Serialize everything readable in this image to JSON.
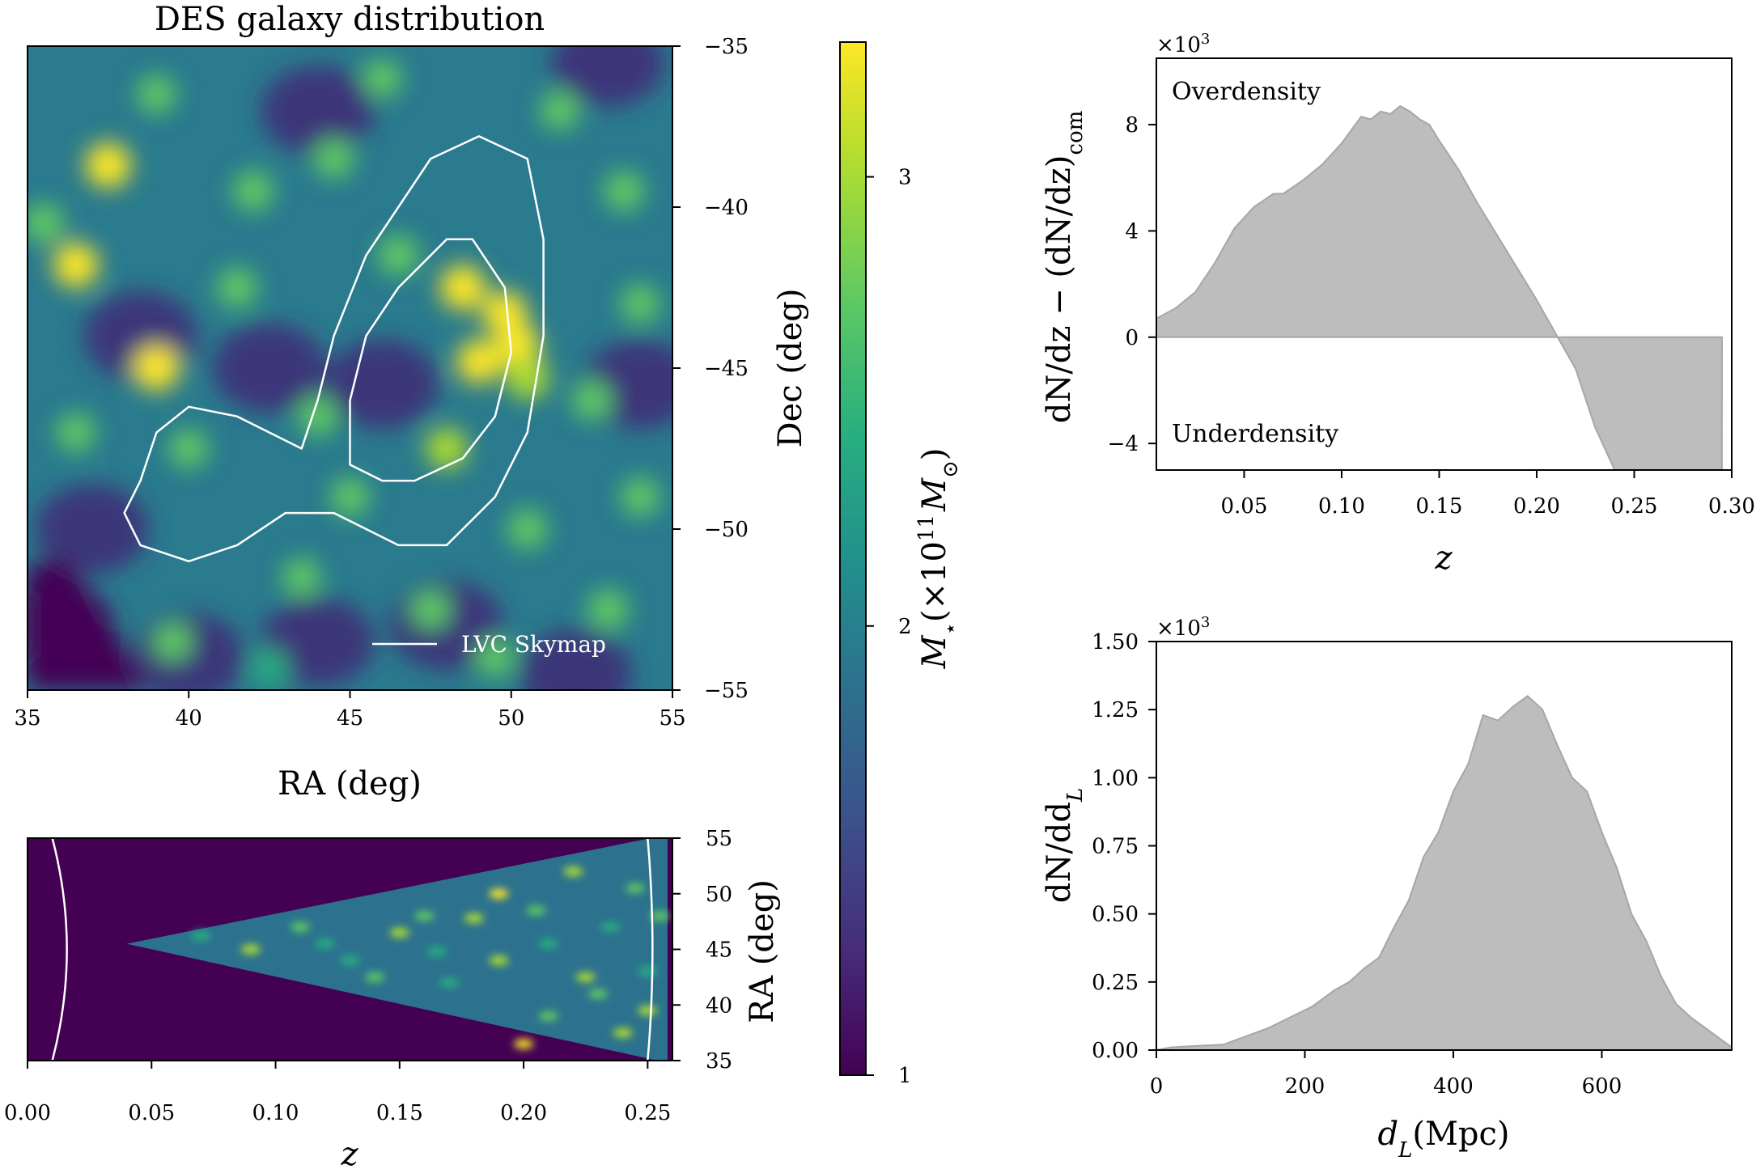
{
  "colors": {
    "fill": "#bdbdbd",
    "edge": "#a6a6a6",
    "contour": "#ffffff",
    "cmap_low": "#440154",
    "cmap_high": "#fde725"
  },
  "chart_data": [
    {
      "id": "sky",
      "type": "heatmap",
      "title": "DES galaxy distribution",
      "xlabel": "RA (deg)",
      "ylabel": "Dec (deg)",
      "xlim": [
        35,
        55
      ],
      "ylim": [
        -55,
        -35
      ],
      "xticks": [
        "35",
        "40",
        "45",
        "50",
        "55"
      ],
      "yticks": [
        "−35",
        "−40",
        "−45",
        "−50",
        "−55"
      ],
      "legend": "LVC Skymap",
      "hotspots": [
        {
          "ra": 37.5,
          "dec": -38.7,
          "v": 1.0
        },
        {
          "ra": 36.5,
          "dec": -41.8,
          "v": 0.95
        },
        {
          "ra": 39.0,
          "dec": -45.0,
          "v": 1.0
        },
        {
          "ra": 48.5,
          "dec": -42.5,
          "v": 1.0
        },
        {
          "ra": 49.8,
          "dec": -43.3,
          "v": 0.95
        },
        {
          "ra": 50.2,
          "dec": -44.3,
          "v": 0.95
        },
        {
          "ra": 49.0,
          "dec": -44.8,
          "v": 0.9
        },
        {
          "ra": 50.5,
          "dec": -45.3,
          "v": 0.85
        },
        {
          "ra": 42.0,
          "dec": -39.5,
          "v": 0.6
        },
        {
          "ra": 44.5,
          "dec": -38.5,
          "v": 0.55
        },
        {
          "ra": 53.5,
          "dec": -39.5,
          "v": 0.6
        },
        {
          "ra": 46.5,
          "dec": -41.5,
          "v": 0.65
        },
        {
          "ra": 41.5,
          "dec": -42.5,
          "v": 0.6
        },
        {
          "ra": 48.0,
          "dec": -47.5,
          "v": 0.7
        },
        {
          "ra": 44.0,
          "dec": -46.5,
          "v": 0.55
        },
        {
          "ra": 40.0,
          "dec": -47.5,
          "v": 0.5
        },
        {
          "ra": 52.5,
          "dec": -46.0,
          "v": 0.55
        },
        {
          "ra": 45.0,
          "dec": -49.0,
          "v": 0.5
        },
        {
          "ra": 50.5,
          "dec": -50.0,
          "v": 0.55
        },
        {
          "ra": 47.5,
          "dec": -52.5,
          "v": 0.5
        },
        {
          "ra": 53.0,
          "dec": -52.5,
          "v": 0.6
        },
        {
          "ra": 36.5,
          "dec": -47.0,
          "v": 0.5
        },
        {
          "ra": 43.5,
          "dec": -51.5,
          "v": 0.45
        },
        {
          "ra": 35.5,
          "dec": -40.5,
          "v": 0.6
        },
        {
          "ra": 51.5,
          "dec": -37.0,
          "v": 0.5
        },
        {
          "ra": 39.0,
          "dec": -36.5,
          "v": 0.5
        },
        {
          "ra": 46.0,
          "dec": -36.0,
          "v": 0.45
        },
        {
          "ra": 54.0,
          "dec": -43.0,
          "v": 0.5
        },
        {
          "ra": 39.5,
          "dec": -53.5,
          "v": 0.45
        },
        {
          "ra": 49.5,
          "dec": -54.0,
          "v": 0.45
        },
        {
          "ra": 42.5,
          "dec": -54.3,
          "v": 0.4
        },
        {
          "ra": 54.0,
          "dec": -49.0,
          "v": 0.5
        }
      ],
      "contour_outer": [
        [
          43.5,
          -47.5
        ],
        [
          41.5,
          -46.5
        ],
        [
          40.0,
          -46.2
        ],
        [
          39.0,
          -47.0
        ],
        [
          38.5,
          -48.5
        ],
        [
          38.0,
          -49.5
        ],
        [
          38.5,
          -50.5
        ],
        [
          40.0,
          -51.0
        ],
        [
          41.5,
          -50.5
        ],
        [
          43.0,
          -49.5
        ],
        [
          44.5,
          -49.5
        ],
        [
          46.5,
          -50.5
        ],
        [
          48.0,
          -50.5
        ],
        [
          49.5,
          -49.0
        ],
        [
          50.5,
          -47.0
        ],
        [
          51.0,
          -44.0
        ],
        [
          51.0,
          -41.0
        ],
        [
          50.5,
          -38.5
        ],
        [
          49.0,
          -37.8
        ],
        [
          47.5,
          -38.5
        ],
        [
          46.5,
          -40.0
        ],
        [
          45.5,
          -41.5
        ],
        [
          44.5,
          -44.0
        ],
        [
          44.0,
          -46.0
        ],
        [
          43.5,
          -47.5
        ]
      ],
      "contour_inner": [
        [
          46.0,
          -48.5
        ],
        [
          45.0,
          -48.0
        ],
        [
          45.0,
          -46.0
        ],
        [
          45.5,
          -44.0
        ],
        [
          46.5,
          -42.5
        ],
        [
          48.0,
          -41.0
        ],
        [
          48.8,
          -41.0
        ],
        [
          49.8,
          -42.5
        ],
        [
          50.0,
          -44.5
        ],
        [
          49.5,
          -46.5
        ],
        [
          48.5,
          -47.8
        ],
        [
          47.0,
          -48.5
        ],
        [
          46.0,
          -48.5
        ]
      ]
    },
    {
      "id": "colorbar",
      "type": "heatmap",
      "label_prefix": "M",
      "label_sub": "⋆",
      "label_mid": "(×10",
      "label_sup": "11",
      "label_unit": "M",
      "label_unit_sub": "⊙",
      "label_close": ")",
      "vlim": [
        1,
        3.3
      ],
      "ticks": [
        "1",
        "2",
        "3"
      ],
      "tick_values": [
        1,
        2,
        3
      ]
    },
    {
      "id": "wedge",
      "type": "heatmap",
      "xlabel": "z",
      "ylabel": "RA (deg)",
      "xlim": [
        0.0,
        0.26
      ],
      "ylim": [
        35,
        55
      ],
      "xticks": [
        "0.00",
        "0.05",
        "0.10",
        "0.15",
        "0.20",
        "0.25"
      ],
      "xtick_values": [
        0.0,
        0.05,
        0.1,
        0.15,
        0.2,
        0.25
      ],
      "yticks": [
        "55",
        "50",
        "45",
        "40",
        "35"
      ],
      "ytick_values": [
        55,
        50,
        45,
        40,
        35
      ],
      "apex_z": 0.04,
      "arc_z": [
        0.01,
        0.25
      ]
    },
    {
      "id": "dndz",
      "type": "area",
      "ylabel": "dN/dz − (dN/dz)",
      "ylabel_sub": "com",
      "xlabel": "z",
      "multiplier": "×10",
      "multiplier_sup": "3",
      "annot_top": "Overdensity",
      "annot_bottom": "Underdensity",
      "xlim": [
        0.005,
        0.3
      ],
      "ylim": [
        -5,
        10.5
      ],
      "xticks": [
        "0.05",
        "0.10",
        "0.15",
        "0.20",
        "0.25",
        "0.30"
      ],
      "xtick_values": [
        0.05,
        0.1,
        0.15,
        0.2,
        0.25,
        0.3
      ],
      "yticks": [
        "8",
        "4",
        "0",
        "−4"
      ],
      "ytick_values": [
        8,
        4,
        0,
        -4
      ],
      "x": [
        0.005,
        0.015,
        0.025,
        0.035,
        0.045,
        0.055,
        0.065,
        0.07,
        0.08,
        0.09,
        0.1,
        0.105,
        0.11,
        0.115,
        0.12,
        0.125,
        0.13,
        0.135,
        0.14,
        0.145,
        0.15,
        0.16,
        0.17,
        0.18,
        0.19,
        0.2,
        0.21,
        0.22,
        0.23,
        0.24,
        0.25,
        0.26,
        0.27,
        0.28,
        0.295
      ],
      "y": [
        0.7,
        1.1,
        1.7,
        2.8,
        4.1,
        4.9,
        5.4,
        5.4,
        5.9,
        6.5,
        7.3,
        7.8,
        8.3,
        8.2,
        8.5,
        8.4,
        8.7,
        8.5,
        8.2,
        8.0,
        7.4,
        6.3,
        5.0,
        3.8,
        2.6,
        1.4,
        0.1,
        -1.2,
        -3.4,
        -5.0,
        -5.0,
        -5.0,
        -5.0,
        -5.0,
        -5.0
      ]
    },
    {
      "id": "dnddl",
      "type": "area",
      "ylabel": "dN/dd",
      "ylabel_sub": "L",
      "xlabel": "d",
      "xlabel_sub": "L",
      "xlabel_unit": "(Mpc)",
      "multiplier": "×10",
      "multiplier_sup": "3",
      "xlim": [
        0,
        775
      ],
      "ylim": [
        0,
        1.5
      ],
      "xticks": [
        "0",
        "200",
        "400",
        "600"
      ],
      "xtick_values": [
        0,
        200,
        400,
        600
      ],
      "yticks": [
        "1.50",
        "1.25",
        "1.00",
        "0.75",
        "0.50",
        "0.25",
        "0.00"
      ],
      "ytick_values": [
        1.5,
        1.25,
        1.0,
        0.75,
        0.5,
        0.25,
        0.0
      ],
      "x": [
        0,
        20,
        50,
        90,
        120,
        150,
        180,
        210,
        240,
        260,
        280,
        300,
        320,
        340,
        360,
        380,
        400,
        420,
        440,
        460,
        480,
        500,
        520,
        540,
        560,
        580,
        600,
        620,
        640,
        660,
        680,
        700,
        720,
        740,
        760,
        775
      ],
      "y": [
        0.0,
        0.01,
        0.015,
        0.02,
        0.05,
        0.08,
        0.12,
        0.16,
        0.22,
        0.25,
        0.3,
        0.34,
        0.45,
        0.55,
        0.71,
        0.8,
        0.95,
        1.05,
        1.23,
        1.21,
        1.26,
        1.3,
        1.25,
        1.12,
        1.0,
        0.95,
        0.8,
        0.67,
        0.5,
        0.4,
        0.27,
        0.17,
        0.12,
        0.08,
        0.04,
        0.01
      ]
    }
  ]
}
